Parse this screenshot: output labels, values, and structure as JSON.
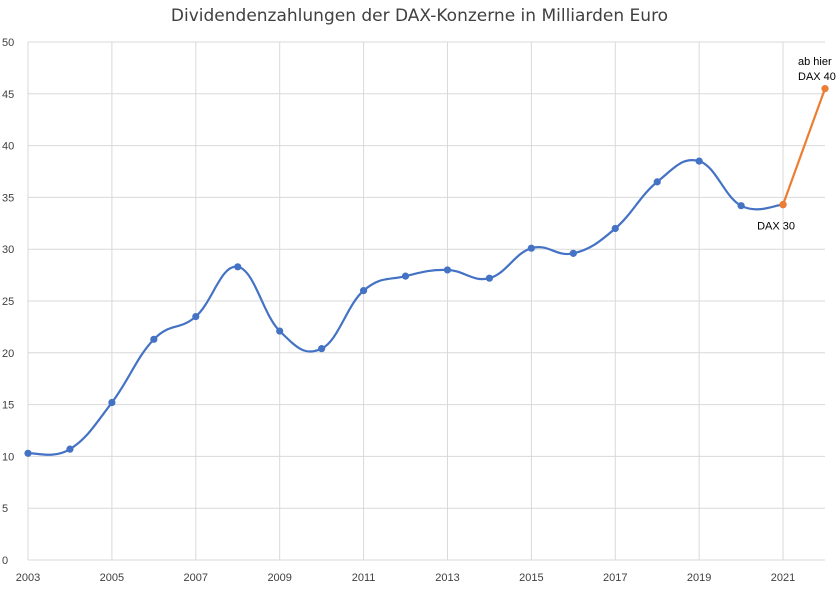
{
  "chart_data": {
    "type": "line",
    "title": "Dividendenzahlungen der DAX-Konzerne in Milliarden Euro",
    "x": [
      2003,
      2004,
      2005,
      2006,
      2007,
      2008,
      2009,
      2010,
      2011,
      2012,
      2013,
      2014,
      2015,
      2016,
      2017,
      2018,
      2019,
      2020,
      2021,
      2022
    ],
    "xticks": [
      "2003",
      "2005",
      "2007",
      "2009",
      "2011",
      "2013",
      "2015",
      "2017",
      "2019",
      "2021"
    ],
    "ylim": [
      0,
      50
    ],
    "yticks": [
      "0",
      "5",
      "10",
      "15",
      "20",
      "25",
      "30",
      "35",
      "40",
      "45",
      "50"
    ],
    "grid": true,
    "series": [
      {
        "name": "DAX 30",
        "color": "#4472c4",
        "x": [
          2003,
          2004,
          2005,
          2006,
          2007,
          2008,
          2009,
          2010,
          2011,
          2012,
          2013,
          2014,
          2015,
          2016,
          2017,
          2018,
          2019,
          2020,
          2021
        ],
        "values": [
          10.3,
          10.7,
          15.2,
          21.3,
          23.5,
          28.3,
          22.1,
          20.4,
          26.0,
          27.4,
          28.0,
          27.2,
          30.1,
          29.6,
          32.0,
          36.5,
          38.5,
          34.2,
          34.3
        ]
      },
      {
        "name": "DAX 40",
        "color": "#ed7d31",
        "x": [
          2021,
          2022
        ],
        "values": [
          34.3,
          45.5
        ]
      }
    ],
    "annotations": [
      {
        "text": "DAX 30"
      },
      {
        "text": "ab hier"
      },
      {
        "text": "DAX 40"
      }
    ]
  }
}
